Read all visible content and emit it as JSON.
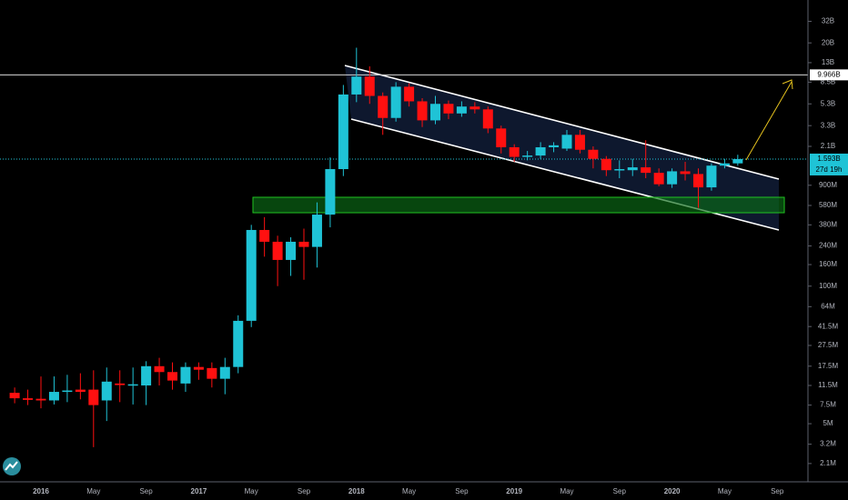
{
  "chart_data": {
    "type": "candlestick",
    "log_scale": true,
    "up_color": "#1fc3d6",
    "down_color": "#ff1010",
    "categories": [
      null,
      null,
      "2016",
      null,
      null,
      null,
      "May",
      null,
      null,
      null,
      "Sep",
      null,
      null,
      null,
      "2017",
      null,
      null,
      null,
      "May",
      null,
      null,
      null,
      "Sep",
      null,
      null,
      null,
      "2018",
      null,
      null,
      null,
      "May",
      null,
      null,
      null,
      "Sep",
      null,
      null,
      null,
      "2019",
      null,
      null,
      null,
      "May",
      null,
      null,
      null,
      "Sep",
      null,
      null,
      null,
      "2020",
      null,
      null,
      null,
      "May",
      null,
      null,
      null,
      "Sep"
    ],
    "open": [
      9800000.0,
      8700000.0,
      8600000.0,
      8300000.0,
      10000000.0,
      10500000.0,
      10500000.0,
      8300000.0,
      12000000.0,
      11600000.0,
      11500000.0,
      17500000.0,
      15400000.0,
      12000000.0,
      17200000.0,
      16800000.0,
      13300000.0,
      17200000.0,
      47000000.0,
      340000000.0,
      263000000.0,
      177000000.0,
      263000000.0,
      235000000.0,
      475000000.0,
      1280000000.0,
      6500000000.0,
      9600000000.0,
      6300000000.0,
      3900000000.0,
      7700000000.0,
      5600000000.0,
      3700000000.0,
      5300000000.0,
      4300000000.0,
      5000000000.0,
      4700000000.0,
      3100000000.0,
      2060000000.0,
      1670000000.0,
      1720000000.0,
      2060000000.0,
      2000000000.0,
      2700000000.0,
      1950000000.0,
      1600000000.0,
      1250000000.0,
      1250000000.0,
      1330000000.0,
      1180000000.0,
      920000000.0,
      1220000000.0,
      1150000000.0,
      860000000.0,
      1380000000.0,
      1450000000.0,
      null,
      null,
      null
    ],
    "high": [
      11000000.0,
      10500000.0,
      14000000.0,
      14000000.0,
      14500000.0,
      15000000.0,
      16000000.0,
      17000000.0,
      16000000.0,
      17000000.0,
      19500000.0,
      21000000.0,
      19000000.0,
      19000000.0,
      19000000.0,
      19000000.0,
      21000000.0,
      53000000.0,
      380000000.0,
      450000000.0,
      300000000.0,
      290000000.0,
      350000000.0,
      620000000.0,
      1650000000.0,
      8000000000.0,
      18000000000.0,
      12000000000.0,
      6800000000.0,
      8500000000.0,
      8300000000.0,
      6000000000.0,
      6300000000.0,
      5700000000.0,
      5600000000.0,
      5500000000.0,
      5000000000.0,
      3300000000.0,
      2200000000.0,
      1900000000.0,
      2300000000.0,
      2300000000.0,
      3000000000.0,
      3000000000.0,
      2100000000.0,
      1700000000.0,
      1550000000.0,
      1600000000.0,
      2400000000.0,
      1300000000.0,
      1300000000.0,
      1500000000.0,
      1300000000.0,
      1450000000.0,
      1600000000.0,
      1750000000.0,
      null,
      null,
      null
    ],
    "low": [
      7800000.0,
      7500000.0,
      7000000.0,
      7600000.0,
      8000000.0,
      8500000.0,
      3000000.0,
      5300000.0,
      8000000.0,
      7600000.0,
      7500000.0,
      11500000.0,
      10500000.0,
      10000000.0,
      13000000.0,
      11000000.0,
      9500000.0,
      15000000.0,
      41000000.0,
      190000000.0,
      100000000.0,
      125000000.0,
      115000000.0,
      150000000.0,
      360000000.0,
      1100000000.0,
      5500000000.0,
      5300000000.0,
      2700000000.0,
      3600000000.0,
      5000000000.0,
      3200000000.0,
      3400000000.0,
      3800000000.0,
      4000000000.0,
      4300000000.0,
      2800000000.0,
      1800000000.0,
      1500000000.0,
      1550000000.0,
      1600000000.0,
      1850000000.0,
      1900000000.0,
      1800000000.0,
      1300000000.0,
      1100000000.0,
      1050000000.0,
      1100000000.0,
      1050000000.0,
      880000000.0,
      850000000.0,
      1000000000.0,
      550000000.0,
      800000000.0,
      1300000000.0,
      1380000000.0,
      null,
      null,
      null
    ],
    "close": [
      8700000.0,
      8400000.0,
      8300000.0,
      10000000.0,
      10300000.0,
      10000000.0,
      7500000.0,
      12500000.0,
      11600000.0,
      11800000.0,
      17500000.0,
      15400000.0,
      12800000.0,
      17200000.0,
      16200000.0,
      13300000.0,
      17200000.0,
      47000000.0,
      340000000.0,
      263000000.0,
      177000000.0,
      263000000.0,
      235000000.0,
      475000000.0,
      1280000000.0,
      6500000000.0,
      9600000000.0,
      6300000000.0,
      3900000000.0,
      7700000000.0,
      5600000000.0,
      3700000000.0,
      5300000000.0,
      4300000000.0,
      5000000000.0,
      4700000000.0,
      3100000000.0,
      2060000000.0,
      1670000000.0,
      1720000000.0,
      2060000000.0,
      2150000000.0,
      2700000000.0,
      1950000000.0,
      1600000000.0,
      1250000000.0,
      1280000000.0,
      1330000000.0,
      1180000000.0,
      920000000.0,
      1220000000.0,
      1150000000.0,
      860000000.0,
      1380000000.0,
      1450000000.0,
      1593000000.0,
      null,
      null,
      null
    ],
    "ylim": [
      1410000.0,
      50900000000.0
    ],
    "yticks": [
      {
        "value": 32000000000.0,
        "label": "32B"
      },
      {
        "value": 20000000000.0,
        "label": "20B"
      },
      {
        "value": 13000000000.0,
        "label": "13B"
      },
      {
        "value": 8500000000.0,
        "label": "8.5B"
      },
      {
        "value": 5300000000.0,
        "label": "5.3B"
      },
      {
        "value": 3300000000.0,
        "label": "3.3B"
      },
      {
        "value": 2100000000.0,
        "label": "2.1B"
      },
      {
        "value": 900000000.0,
        "label": "900M"
      },
      {
        "value": 580000000.0,
        "label": "580M"
      },
      {
        "value": 380000000.0,
        "label": "380M"
      },
      {
        "value": 240000000.0,
        "label": "240M"
      },
      {
        "value": 160000000.0,
        "label": "160M"
      },
      {
        "value": 100000000.0,
        "label": "100M"
      },
      {
        "value": 64000000.0,
        "label": "64M"
      },
      {
        "value": 41500000.0,
        "label": "41.5M"
      },
      {
        "value": 27500000.0,
        "label": "27.5M"
      },
      {
        "value": 17500000.0,
        "label": "17.5M"
      },
      {
        "value": 11500000.0,
        "label": "11.5M"
      },
      {
        "value": 7500000.0,
        "label": "7.5M"
      },
      {
        "value": 5000000.0,
        "label": "5M"
      },
      {
        "value": 3200000.0,
        "label": "3.2M"
      },
      {
        "value": 2100000.0,
        "label": "2.1M"
      }
    ],
    "horizontal_line": {
      "value": 9966000000.0,
      "label": "9.966B"
    },
    "last_price": {
      "value": 1593000000.0,
      "label": "1.593B"
    },
    "countdown": "27d 19h"
  }
}
